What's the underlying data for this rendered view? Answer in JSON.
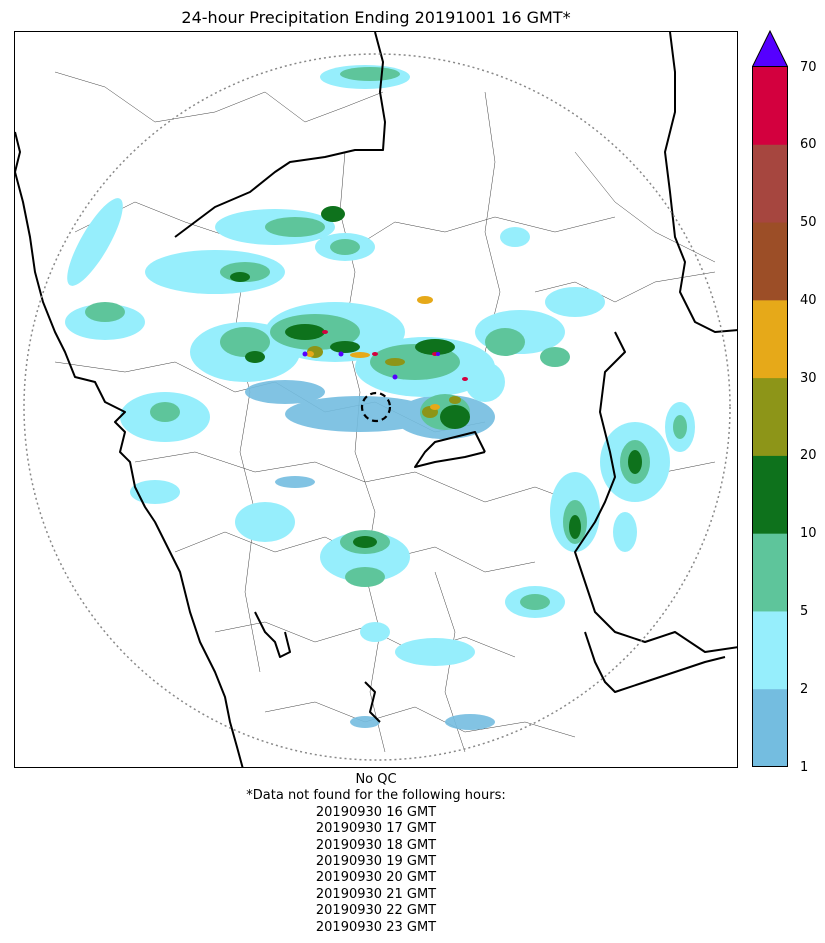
{
  "title": "24-hour Precipitation Ending 20191001 16 GMT*",
  "colorbar": {
    "ticks": [
      "1",
      "2",
      "5",
      "10",
      "20",
      "30",
      "40",
      "50",
      "60",
      "70"
    ],
    "colors": [
      "#74bde0",
      "#96eefc",
      "#5ec59b",
      "#0e721c",
      "#8d9518",
      "#e6a919",
      "#9c4e27",
      "#a6463f",
      "#d3003e"
    ],
    "extend_color": "#5500ff"
  },
  "notes": {
    "qc": "No QC",
    "missing_header": "*Data not found for the following hours:",
    "missing_hours": [
      "20190930 16 GMT",
      "20190930 17 GMT",
      "20190930 18 GMT",
      "20190930 19 GMT",
      "20190930 20 GMT",
      "20190930 21 GMT",
      "20190930 22 GMT",
      "20190930 23 GMT"
    ]
  }
}
